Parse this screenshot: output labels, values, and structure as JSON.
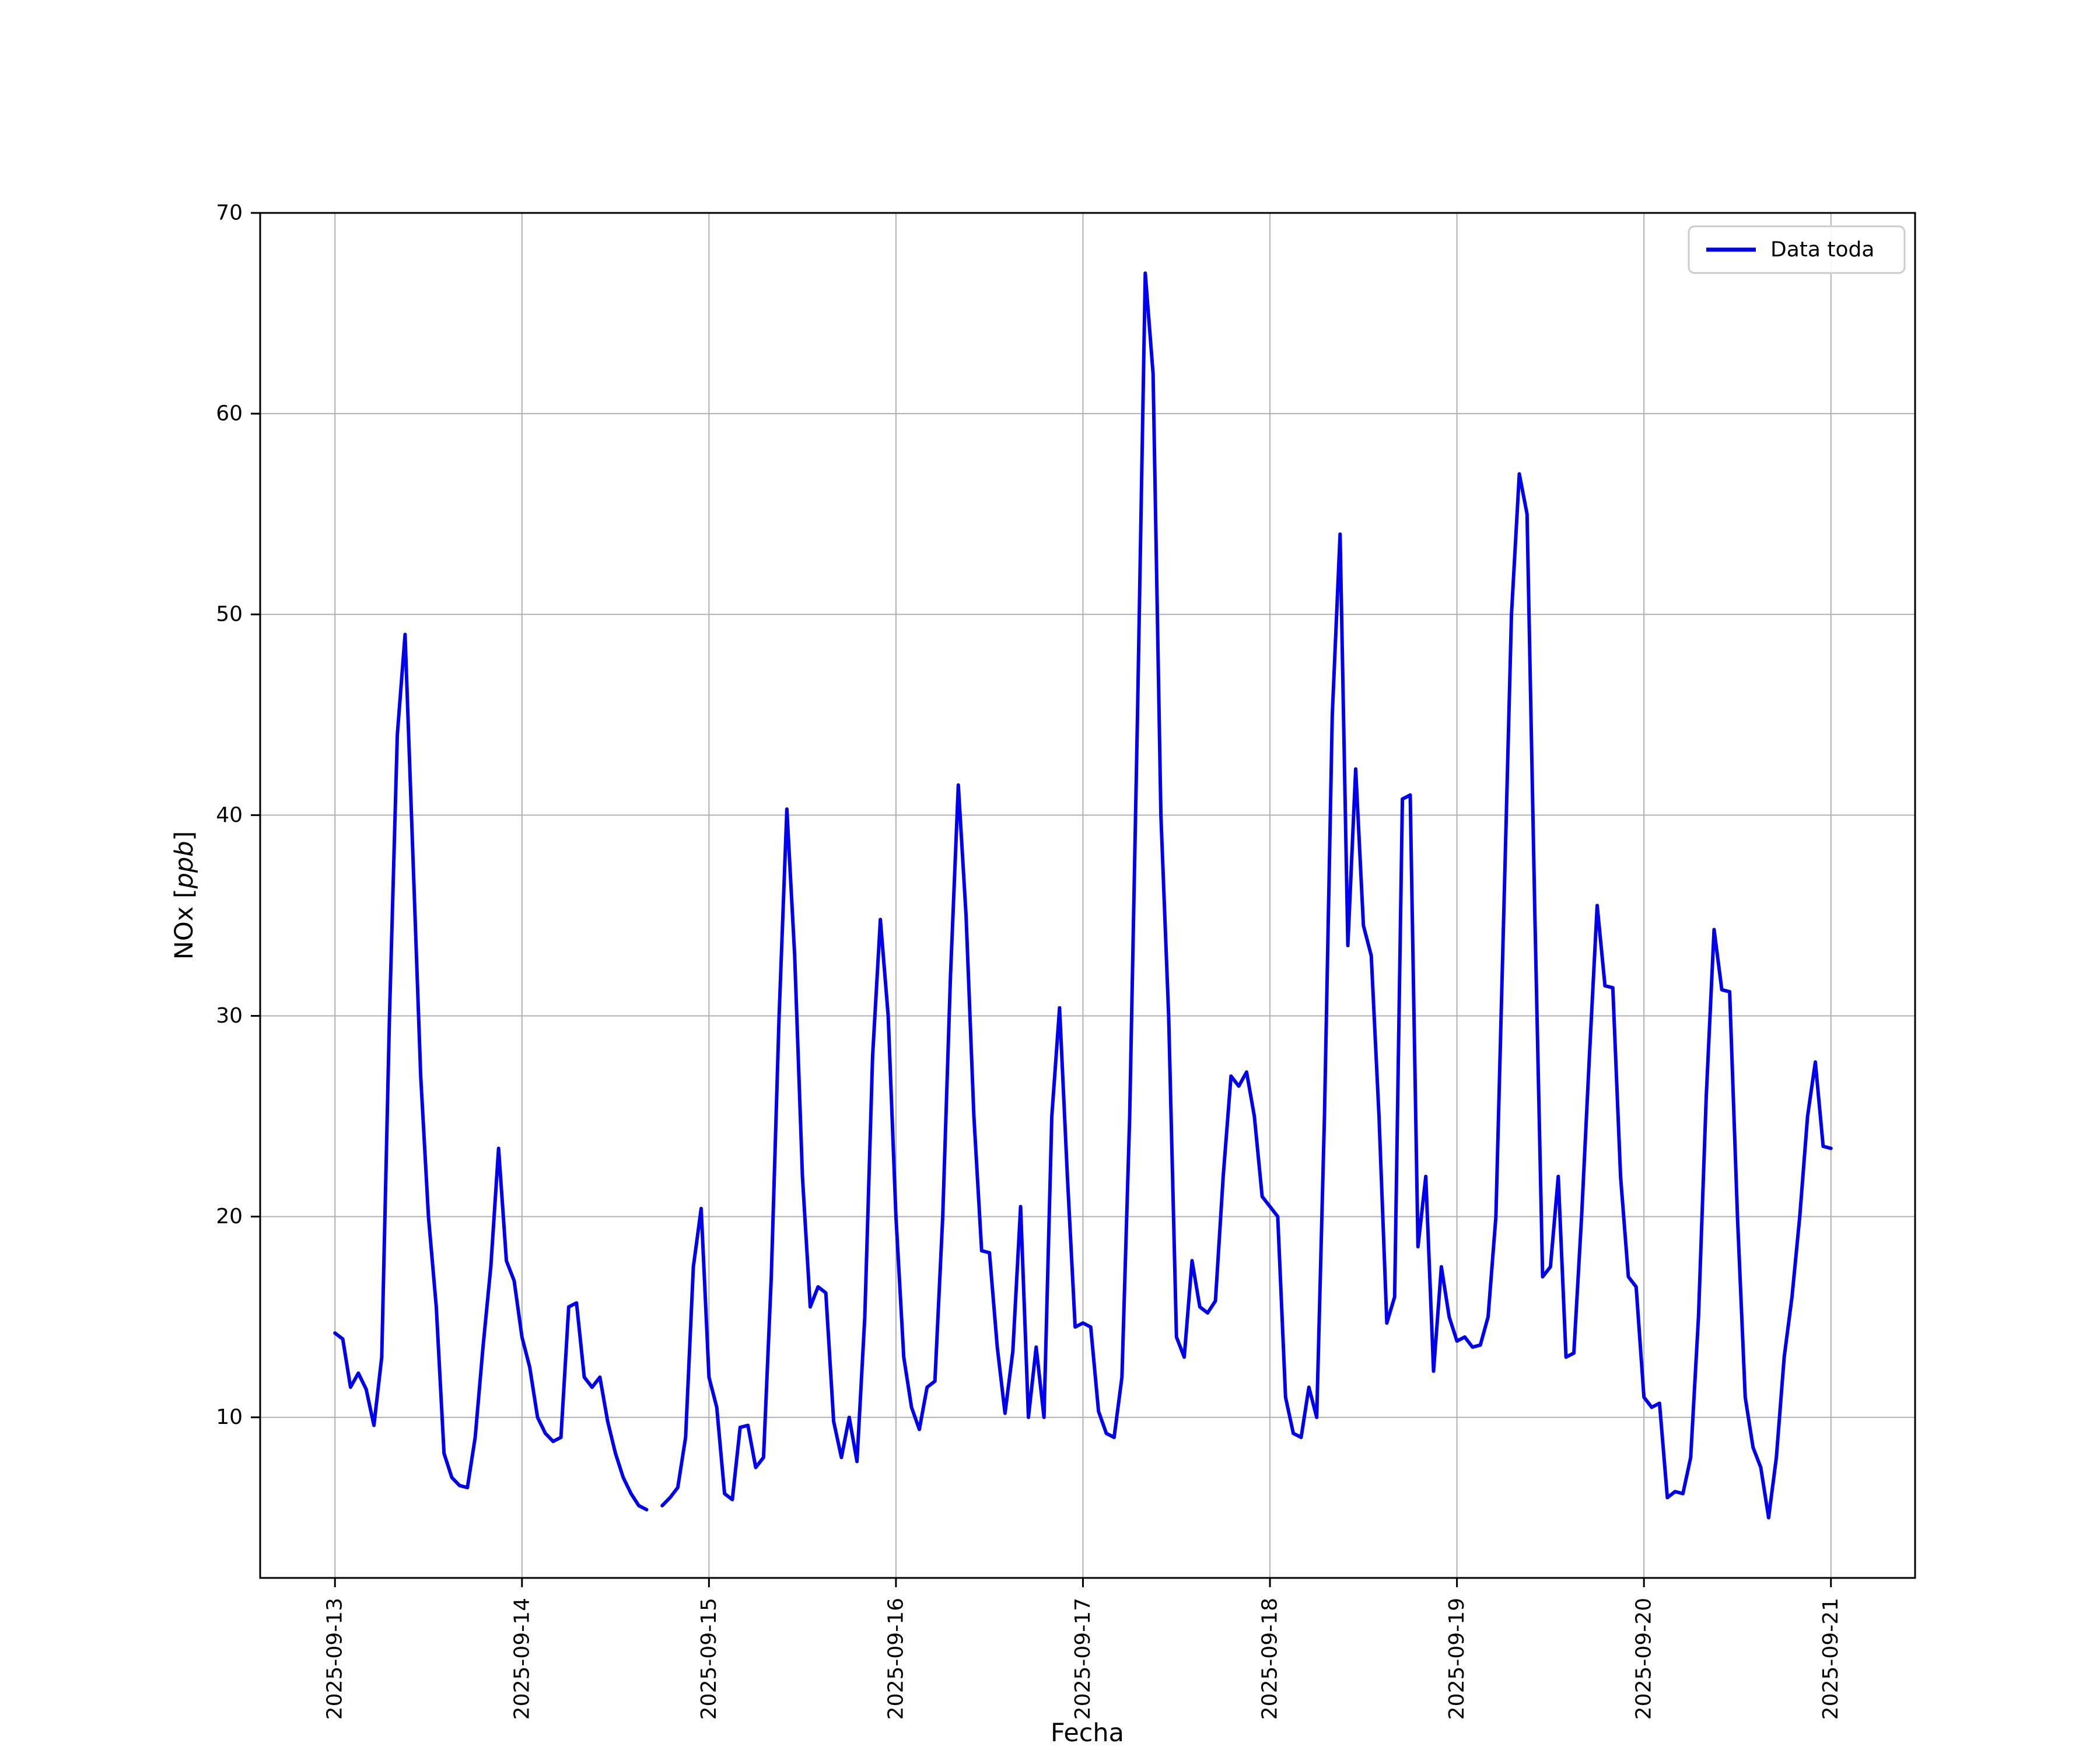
{
  "figure": {
    "background": "#ffffff",
    "plot_background": "#ffffff",
    "grid_color": "#b0b0b0",
    "axis_color": "#000000",
    "legend_edge_color": "#cccccc"
  },
  "chart_data": {
    "type": "line",
    "title": "",
    "xlabel": "Fecha",
    "ylabel_prefix": "NOx [",
    "ylabel_italic": "ppb",
    "ylabel_suffix": "]",
    "legend": [
      {
        "label": "Data toda",
        "color": "#0000ee"
      }
    ],
    "line_color": "#0000ee",
    "line_width": 6,
    "grid": true,
    "legend_position": "upper right",
    "x_tick_labels": [
      "2025-09-13",
      "2025-09-14",
      "2025-09-15",
      "2025-09-16",
      "2025-09-17",
      "2025-09-18",
      "2025-09-19",
      "2025-09-20",
      "2025-09-21"
    ],
    "x_tick_positions_days": [
      0,
      1,
      2,
      3,
      4,
      5,
      6,
      7,
      8
    ],
    "y_ticks": [
      10,
      20,
      30,
      40,
      50,
      60,
      70
    ],
    "ylim": [
      2,
      70
    ],
    "xlim_days": [
      -0.4,
      8.45
    ],
    "x_start_label": "2025-09-13",
    "x_step_hours": 1,
    "values": [
      14.2,
      13.9,
      11.5,
      12.2,
      11.4,
      9.6,
      13.0,
      30.0,
      44.0,
      49.0,
      38.0,
      27.0,
      20.0,
      15.5,
      8.2,
      7.0,
      6.6,
      6.5,
      9.0,
      13.5,
      17.5,
      23.4,
      17.8,
      16.8,
      14.0,
      12.5,
      10.0,
      9.2,
      8.8,
      9.0,
      15.5,
      15.7,
      12.0,
      11.5,
      12.0,
      9.8,
      8.2,
      7.0,
      6.2,
      5.6,
      5.4,
      null,
      5.6,
      6.0,
      6.5,
      9.0,
      17.5,
      20.4,
      12.0,
      10.5,
      6.2,
      5.9,
      9.5,
      9.6,
      7.5,
      8.0,
      17.0,
      30.0,
      40.3,
      33.0,
      22.0,
      15.5,
      16.5,
      16.2,
      9.8,
      8.0,
      10.0,
      7.8,
      15.0,
      28.0,
      34.8,
      30.0,
      20.0,
      13.0,
      10.5,
      9.4,
      11.5,
      11.8,
      20.0,
      32.0,
      41.5,
      35.0,
      25.0,
      18.3,
      18.2,
      13.5,
      10.2,
      13.3,
      20.5,
      10.0,
      13.5,
      10.0,
      25.0,
      30.4,
      22.0,
      14.5,
      14.7,
      14.5,
      10.3,
      9.2,
      9.0,
      12.0,
      25.0,
      45.0,
      67.0,
      62.0,
      40.0,
      30.0,
      14.0,
      13.0,
      17.8,
      15.5,
      15.2,
      15.8,
      22.0,
      27.0,
      26.5,
      27.2,
      25.0,
      21.0,
      20.5,
      20.0,
      11.0,
      9.2,
      9.0,
      11.5,
      10.0,
      25.0,
      45.0,
      54.0,
      33.5,
      42.3,
      34.5,
      33.0,
      25.0,
      14.7,
      16.0,
      40.8,
      41.0,
      18.5,
      22.0,
      12.3,
      17.5,
      15.0,
      13.8,
      14.0,
      13.5,
      13.6,
      15.0,
      20.0,
      35.0,
      50.0,
      57.0,
      55.0,
      35.0,
      17.0,
      17.5,
      22.0,
      13.0,
      13.2,
      20.0,
      28.0,
      35.5,
      31.5,
      31.4,
      22.0,
      17.0,
      16.5,
      11.0,
      10.5,
      10.7,
      6.0,
      6.3,
      6.2,
      8.0,
      15.0,
      26.0,
      34.3,
      31.3,
      31.2,
      20.0,
      11.0,
      8.5,
      7.5,
      5.0,
      8.0,
      13.0,
      16.0,
      20.0,
      25.0,
      27.7,
      23.5,
      23.4
    ]
  }
}
